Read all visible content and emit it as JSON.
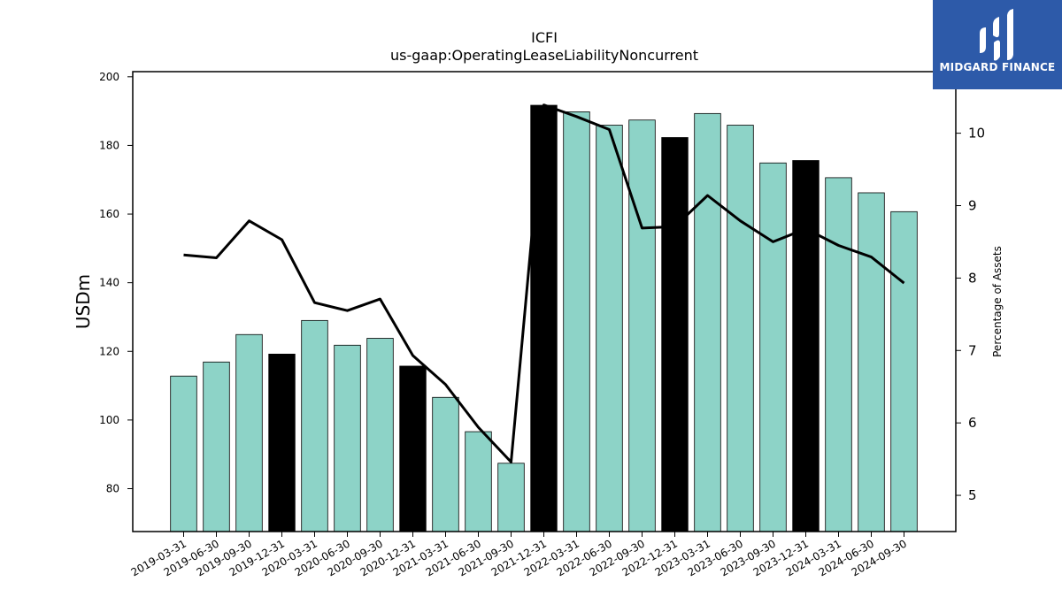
{
  "chart_data": {
    "type": "bar",
    "title": "ICFI",
    "subtitle": "us-gaap:OperatingLeaseLiabilityNoncurrent",
    "ylabel": "USDm",
    "ylabel_right": "Percentage of Assets",
    "categories": [
      "2019-03-31",
      "2019-06-30",
      "2019-09-30",
      "2019-12-31",
      "2020-03-31",
      "2020-06-30",
      "2020-09-30",
      "2020-12-31",
      "2021-03-31",
      "2021-06-30",
      "2021-09-30",
      "2021-12-31",
      "2022-03-31",
      "2022-06-30",
      "2022-09-30",
      "2022-12-31",
      "2023-03-31",
      "2023-06-30",
      "2023-09-30",
      "2023-12-31",
      "2024-03-31",
      "2024-06-30",
      "2024-09-30"
    ],
    "series": [
      {
        "type": "bar",
        "axis": "left",
        "values": [
          112.8,
          116.9,
          124.9,
          119.2,
          129.0,
          121.8,
          123.8,
          115.7,
          106.6,
          96.6,
          87.4,
          191.7,
          189.8,
          185.9,
          187.4,
          182.3,
          189.3,
          185.9,
          174.9,
          175.6,
          170.6,
          166.2,
          160.7
        ]
      },
      {
        "type": "line",
        "axis": "right",
        "values": [
          8.32,
          8.28,
          8.79,
          8.53,
          7.66,
          7.55,
          7.71,
          6.93,
          6.53,
          5.94,
          5.46,
          10.39,
          10.23,
          10.05,
          8.69,
          8.71,
          9.14,
          8.79,
          8.5,
          8.68,
          8.45,
          8.29,
          7.93
        ]
      }
    ],
    "highlight_categories": [
      "2019-12-31",
      "2020-12-31",
      "2021-12-31",
      "2022-12-31",
      "2023-12-31"
    ],
    "ylim": [
      67.5,
      201.5
    ],
    "ylim_right": [
      4.5,
      10.85
    ],
    "yticks": [
      80,
      100,
      120,
      140,
      160,
      180,
      200
    ],
    "yticks_right": [
      5,
      6,
      7,
      8,
      9,
      10
    ],
    "colors": {
      "bar": "#8dd3c7",
      "bar_highlight": "#000000",
      "line": "#000000"
    },
    "grid": false
  },
  "logo": {
    "text": "MIDGARD FINANCE"
  }
}
